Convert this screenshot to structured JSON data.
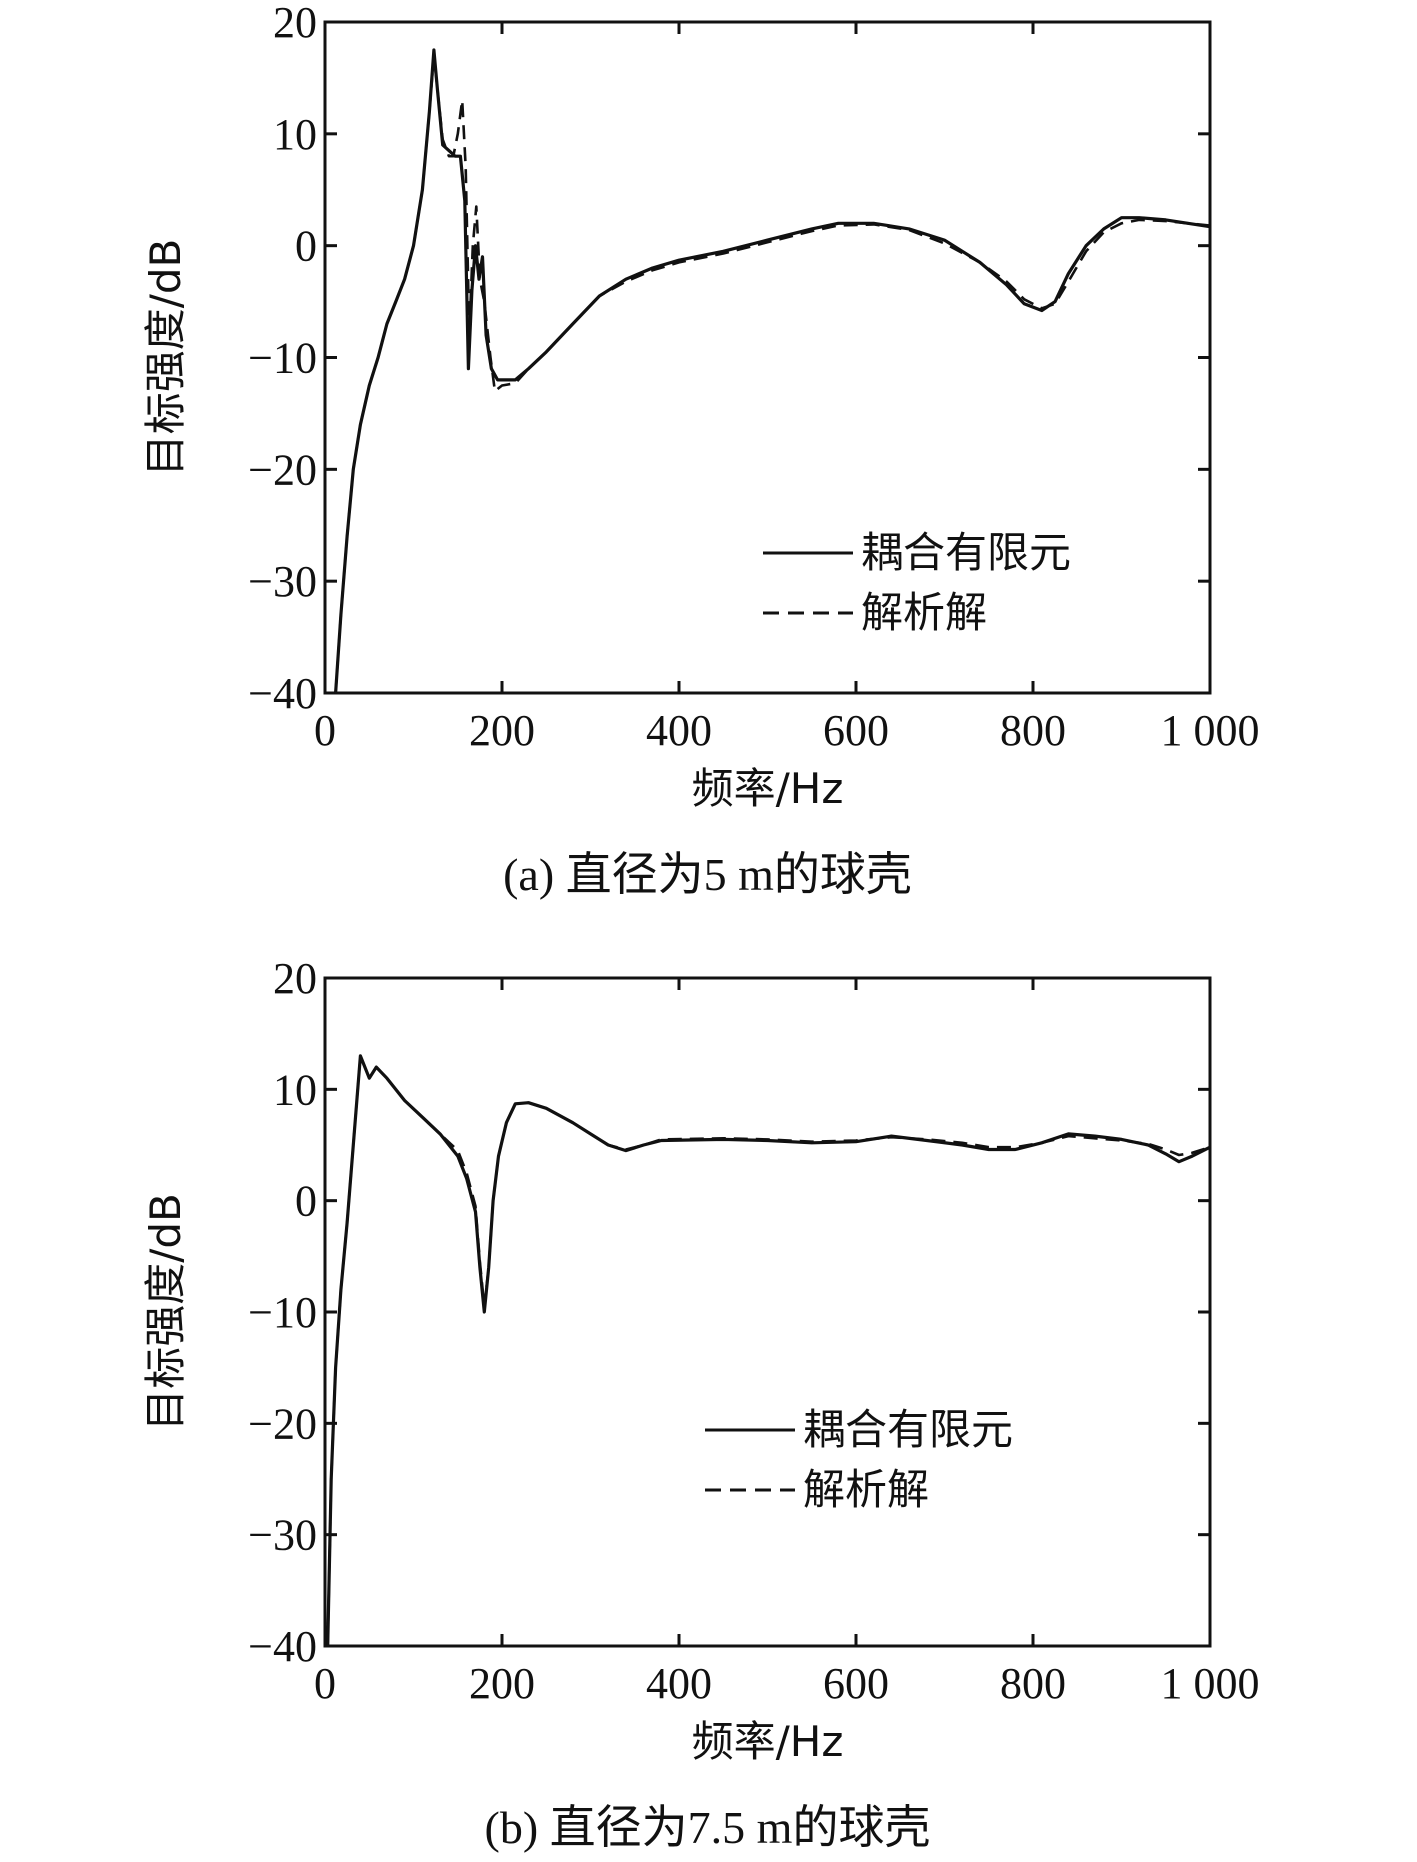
{
  "chart_data": [
    {
      "type": "line",
      "caption": "(a) 直径为5 m的球壳",
      "xlabel": "频率/Hz",
      "ylabel": "目标强度/dB",
      "xlim": [
        0,
        1000
      ],
      "ylim": [
        -40,
        20
      ],
      "xticks": [
        0,
        200,
        400,
        600,
        800,
        1000
      ],
      "xtick_labels": [
        "0",
        "200",
        "400",
        "600",
        "800",
        "1 000"
      ],
      "yticks": [
        -40,
        -30,
        -20,
        -10,
        0,
        10,
        20
      ],
      "ytick_labels": [
        "−40",
        "−30",
        "−20",
        "−10",
        "0",
        "10",
        "20"
      ],
      "legend_position": "lower-right",
      "series": [
        {
          "name": "耦合有限元",
          "style": "solid",
          "points": [
            [
              12,
              -40
            ],
            [
              18,
              -33
            ],
            [
              25,
              -26
            ],
            [
              32,
              -20
            ],
            [
              40,
              -16
            ],
            [
              50,
              -12.5
            ],
            [
              60,
              -10
            ],
            [
              70,
              -7
            ],
            [
              80,
              -5
            ],
            [
              90,
              -3
            ],
            [
              100,
              0
            ],
            [
              110,
              5
            ],
            [
              118,
              12
            ],
            [
              123,
              17.5
            ],
            [
              127,
              14
            ],
            [
              133,
              9
            ],
            [
              140,
              8.5
            ],
            [
              147,
              8
            ],
            [
              153,
              8
            ],
            [
              158,
              4
            ],
            [
              162,
              -11
            ],
            [
              166,
              -4
            ],
            [
              170,
              0
            ],
            [
              174,
              -3
            ],
            [
              178,
              -1
            ],
            [
              182,
              -8
            ],
            [
              188,
              -11
            ],
            [
              195,
              -12
            ],
            [
              205,
              -12
            ],
            [
              215,
              -12
            ],
            [
              230,
              -11
            ],
            [
              250,
              -9.5
            ],
            [
              280,
              -7
            ],
            [
              310,
              -4.5
            ],
            [
              340,
              -3
            ],
            [
              370,
              -2
            ],
            [
              400,
              -1.3
            ],
            [
              450,
              -0.5
            ],
            [
              500,
              0.5
            ],
            [
              550,
              1.5
            ],
            [
              580,
              2
            ],
            [
              620,
              2
            ],
            [
              660,
              1.5
            ],
            [
              700,
              0.5
            ],
            [
              740,
              -1.5
            ],
            [
              770,
              -3.5
            ],
            [
              790,
              -5.2
            ],
            [
              810,
              -5.8
            ],
            [
              825,
              -5
            ],
            [
              840,
              -2.5
            ],
            [
              860,
              0
            ],
            [
              880,
              1.5
            ],
            [
              900,
              2.5
            ],
            [
              920,
              2.5
            ],
            [
              950,
              2.3
            ],
            [
              975,
              2
            ],
            [
              1000,
              1.7
            ]
          ]
        },
        {
          "name": "解析解",
          "style": "dashed",
          "points": [
            [
              12,
              -40
            ],
            [
              18,
              -33
            ],
            [
              25,
              -26
            ],
            [
              32,
              -20
            ],
            [
              40,
              -16
            ],
            [
              50,
              -12.5
            ],
            [
              60,
              -10
            ],
            [
              70,
              -7
            ],
            [
              80,
              -5
            ],
            [
              90,
              -3
            ],
            [
              100,
              0
            ],
            [
              110,
              5
            ],
            [
              118,
              12
            ],
            [
              123,
              17
            ],
            [
              127,
              14
            ],
            [
              133,
              9.5
            ],
            [
              140,
              8
            ],
            [
              145,
              8
            ],
            [
              150,
              10
            ],
            [
              155,
              13
            ],
            [
              159,
              7
            ],
            [
              163,
              -8
            ],
            [
              167,
              0
            ],
            [
              171,
              3.5
            ],
            [
              175,
              -3
            ],
            [
              180,
              -5
            ],
            [
              187,
              -10
            ],
            [
              192,
              -13
            ],
            [
              200,
              -12.5
            ],
            [
              215,
              -12.3
            ],
            [
              230,
              -11
            ],
            [
              250,
              -9.5
            ],
            [
              280,
              -7
            ],
            [
              310,
              -4.5
            ],
            [
              340,
              -3.2
            ],
            [
              370,
              -2.2
            ],
            [
              400,
              -1.5
            ],
            [
              450,
              -0.7
            ],
            [
              500,
              0.3
            ],
            [
              550,
              1.3
            ],
            [
              580,
              1.8
            ],
            [
              620,
              1.9
            ],
            [
              660,
              1.4
            ],
            [
              700,
              0.2
            ],
            [
              740,
              -1.5
            ],
            [
              770,
              -3.2
            ],
            [
              790,
              -4.8
            ],
            [
              810,
              -5.6
            ],
            [
              825,
              -5.2
            ],
            [
              840,
              -3.2
            ],
            [
              860,
              -0.5
            ],
            [
              880,
              1.2
            ],
            [
              900,
              2
            ],
            [
              920,
              2.3
            ],
            [
              950,
              2.2
            ],
            [
              975,
              2
            ],
            [
              1000,
              1.8
            ]
          ]
        }
      ]
    },
    {
      "type": "line",
      "caption": "(b) 直径为7.5 m的球壳",
      "xlabel": "频率/Hz",
      "ylabel": "目标强度/dB",
      "xlim": [
        0,
        1000
      ],
      "ylim": [
        -40,
        20
      ],
      "xticks": [
        0,
        200,
        400,
        600,
        800,
        1000
      ],
      "xtick_labels": [
        "0",
        "200",
        "400",
        "600",
        "800",
        "1 000"
      ],
      "yticks": [
        -40,
        -30,
        -20,
        -10,
        0,
        10,
        20
      ],
      "ytick_labels": [
        "−40",
        "−30",
        "−20",
        "−10",
        "0",
        "10",
        "20"
      ],
      "legend_position": "lower-right",
      "series": [
        {
          "name": "耦合有限元",
          "style": "solid",
          "points": [
            [
              3,
              -40
            ],
            [
              7,
              -25
            ],
            [
              12,
              -15
            ],
            [
              18,
              -8
            ],
            [
              25,
              -2
            ],
            [
              32,
              5
            ],
            [
              40,
              13
            ],
            [
              50,
              11
            ],
            [
              58,
              12
            ],
            [
              70,
              11
            ],
            [
              90,
              9
            ],
            [
              110,
              7.5
            ],
            [
              130,
              6
            ],
            [
              150,
              4
            ],
            [
              160,
              2
            ],
            [
              170,
              -1
            ],
            [
              175,
              -6
            ],
            [
              180,
              -10
            ],
            [
              185,
              -6
            ],
            [
              190,
              0
            ],
            [
              196,
              4
            ],
            [
              205,
              7
            ],
            [
              215,
              8.7
            ],
            [
              230,
              8.8
            ],
            [
              250,
              8.3
            ],
            [
              280,
              7
            ],
            [
              300,
              6
            ],
            [
              320,
              5
            ],
            [
              340,
              4.5
            ],
            [
              360,
              5
            ],
            [
              380,
              5.4
            ],
            [
              450,
              5.5
            ],
            [
              500,
              5.4
            ],
            [
              550,
              5.2
            ],
            [
              600,
              5.3
            ],
            [
              640,
              5.8
            ],
            [
              680,
              5.4
            ],
            [
              720,
              5
            ],
            [
              750,
              4.6
            ],
            [
              780,
              4.6
            ],
            [
              810,
              5.2
            ],
            [
              840,
              6
            ],
            [
              870,
              5.8
            ],
            [
              900,
              5.5
            ],
            [
              930,
              5
            ],
            [
              950,
              4.2
            ],
            [
              965,
              3.5
            ],
            [
              980,
              4
            ],
            [
              1000,
              4.8
            ]
          ]
        },
        {
          "name": "解析解",
          "style": "dashed",
          "points": [
            [
              3,
              -40
            ],
            [
              7,
              -25
            ],
            [
              12,
              -15
            ],
            [
              18,
              -8
            ],
            [
              25,
              -2
            ],
            [
              32,
              5
            ],
            [
              40,
              13
            ],
            [
              50,
              11
            ],
            [
              58,
              12
            ],
            [
              70,
              11
            ],
            [
              90,
              9
            ],
            [
              110,
              7.5
            ],
            [
              130,
              6
            ],
            [
              150,
              4.5
            ],
            [
              160,
              2.5
            ],
            [
              170,
              -0.5
            ],
            [
              175,
              -5.5
            ],
            [
              180,
              -9.5
            ],
            [
              185,
              -6
            ],
            [
              190,
              0
            ],
            [
              196,
              4
            ],
            [
              205,
              7
            ],
            [
              215,
              8.7
            ],
            [
              230,
              8.8
            ],
            [
              250,
              8.3
            ],
            [
              280,
              7
            ],
            [
              300,
              6
            ],
            [
              320,
              5
            ],
            [
              340,
              4.6
            ],
            [
              360,
              5
            ],
            [
              380,
              5.5
            ],
            [
              450,
              5.6
            ],
            [
              500,
              5.5
            ],
            [
              550,
              5.3
            ],
            [
              600,
              5.4
            ],
            [
              640,
              5.7
            ],
            [
              680,
              5.5
            ],
            [
              720,
              5.2
            ],
            [
              750,
              4.8
            ],
            [
              780,
              4.8
            ],
            [
              810,
              5.2
            ],
            [
              840,
              5.8
            ],
            [
              870,
              5.6
            ],
            [
              900,
              5.4
            ],
            [
              930,
              5.1
            ],
            [
              950,
              4.6
            ],
            [
              965,
              4.1
            ],
            [
              980,
              4.3
            ],
            [
              1000,
              4.8
            ]
          ]
        }
      ]
    }
  ]
}
